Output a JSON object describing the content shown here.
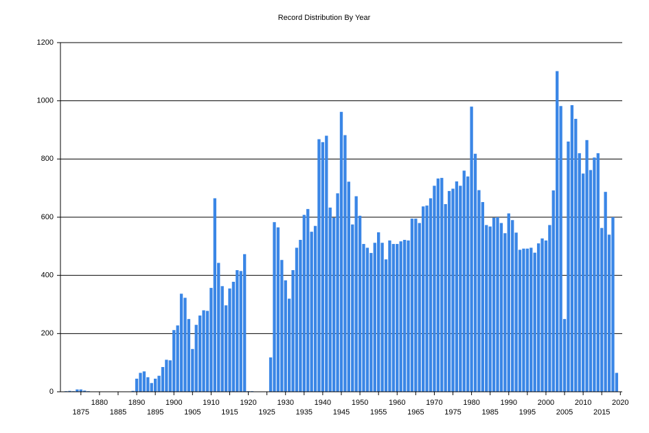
{
  "chart_data": {
    "type": "bar",
    "title": "Record Distribution By Year",
    "x": [
      1870,
      1871,
      1872,
      1873,
      1874,
      1875,
      1876,
      1877,
      1878,
      1879,
      1880,
      1881,
      1882,
      1883,
      1884,
      1885,
      1886,
      1887,
      1888,
      1889,
      1890,
      1891,
      1892,
      1893,
      1894,
      1895,
      1896,
      1897,
      1898,
      1899,
      1900,
      1901,
      1902,
      1903,
      1904,
      1905,
      1906,
      1907,
      1908,
      1909,
      1910,
      1911,
      1912,
      1913,
      1914,
      1915,
      1916,
      1917,
      1918,
      1919,
      1920,
      1921,
      1922,
      1923,
      1924,
      1925,
      1926,
      1927,
      1928,
      1929,
      1930,
      1931,
      1932,
      1933,
      1934,
      1935,
      1936,
      1937,
      1938,
      1939,
      1940,
      1941,
      1942,
      1943,
      1944,
      1945,
      1946,
      1947,
      1948,
      1949,
      1950,
      1951,
      1952,
      1953,
      1954,
      1955,
      1956,
      1957,
      1958,
      1959,
      1960,
      1961,
      1962,
      1963,
      1964,
      1965,
      1966,
      1967,
      1968,
      1969,
      1970,
      1971,
      1972,
      1973,
      1974,
      1975,
      1976,
      1977,
      1978,
      1979,
      1980,
      1981,
      1982,
      1983,
      1984,
      1985,
      1986,
      1987,
      1988,
      1989,
      1990,
      1991,
      1992,
      1993,
      1994,
      1995,
      1996,
      1997,
      1998,
      1999,
      2000,
      2001,
      2002,
      2003,
      2004,
      2005,
      2006,
      2007,
      2008,
      2009,
      2010,
      2011,
      2012,
      2013,
      2014,
      2015,
      2016,
      2017,
      2018,
      2019
    ],
    "values": [
      0,
      2,
      3,
      2,
      8,
      8,
      4,
      2,
      1,
      1,
      1,
      0,
      0,
      0,
      0,
      0,
      0,
      0,
      0,
      3,
      45,
      65,
      70,
      50,
      30,
      45,
      55,
      85,
      110,
      108,
      212,
      228,
      337,
      323,
      250,
      147,
      230,
      262,
      280,
      278,
      357,
      665,
      443,
      363,
      297,
      355,
      378,
      418,
      415,
      473,
      2,
      2,
      1,
      0,
      0,
      0,
      118,
      583,
      565,
      453,
      383,
      320,
      418,
      495,
      522,
      608,
      628,
      550,
      570,
      868,
      858,
      880,
      633,
      598,
      682,
      962,
      882,
      722,
      575,
      672,
      605,
      508,
      495,
      477,
      512,
      548,
      512,
      455,
      520,
      508,
      508,
      517,
      522,
      520,
      595,
      595,
      580,
      637,
      640,
      665,
      708,
      733,
      735,
      645,
      690,
      698,
      723,
      708,
      760,
      740,
      980,
      818,
      693,
      652,
      573,
      568,
      598,
      600,
      580,
      545,
      613,
      590,
      547,
      488,
      492,
      492,
      495,
      478,
      510,
      527,
      520,
      573,
      692,
      1102,
      982,
      250,
      860,
      985,
      938,
      820,
      750,
      865,
      762,
      805,
      820,
      563,
      687,
      540,
      600,
      65
    ],
    "color": "#3a86e6",
    "xlim": [
      1869.5,
      2020.5
    ],
    "xticks": [
      1875,
      1880,
      1885,
      1890,
      1895,
      1900,
      1905,
      1910,
      1915,
      1920,
      1925,
      1930,
      1935,
      1940,
      1945,
      1950,
      1955,
      1960,
      1965,
      1970,
      1975,
      1980,
      1985,
      1990,
      1995,
      2000,
      2005,
      2010,
      2015,
      2020
    ],
    "ylim": [
      0,
      1200
    ],
    "yticks": [
      0,
      200,
      400,
      600,
      800,
      1000,
      1200
    ],
    "grid": true
  }
}
